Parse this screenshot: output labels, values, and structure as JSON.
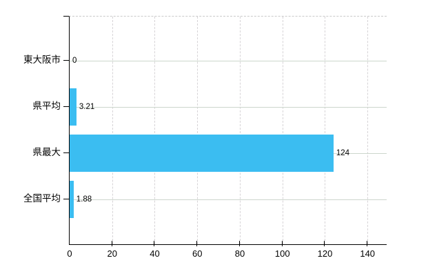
{
  "chart_data": {
    "type": "bar",
    "orientation": "horizontal",
    "title": "",
    "categories": [
      "東大阪市",
      "県平均",
      "県最大",
      "全国平均"
    ],
    "values": [
      0,
      3.21,
      124,
      1.88
    ],
    "value_labels": [
      "0",
      "3.21",
      "124",
      "1.88"
    ],
    "x_ticks": [
      "0",
      "20",
      "40",
      "60",
      "80",
      "100",
      "120",
      "140"
    ],
    "x_tick_values": [
      0,
      20,
      40,
      60,
      80,
      100,
      120,
      140
    ],
    "xlim": [
      0,
      149
    ],
    "grid": true,
    "legend": "none",
    "bar_color": "#3bbdf1",
    "axis_color": "#000000",
    "h_gridline_color": "#ccd6cc",
    "v_gridline_color": "#d6d3d6",
    "top_border_color": "#c9c9c9",
    "text_color": "#000000"
  }
}
